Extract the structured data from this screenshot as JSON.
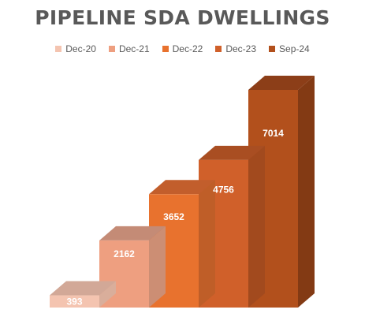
{
  "chart_data": {
    "type": "bar",
    "title": "PIPELINE SDA DWELLINGS",
    "categories": [
      "Dec-20",
      "Dec-21",
      "Dec-22",
      "Dec-23",
      "Sep-24"
    ],
    "values": [
      393,
      2162,
      3652,
      4756,
      7014
    ],
    "xlabel": "",
    "ylabel": "",
    "ylim": [
      0,
      7500
    ],
    "grid": false,
    "legend_position": "top",
    "three_d": true,
    "colors": {
      "front": [
        "#F4C4B0",
        "#EE9F80",
        "#E8722E",
        "#D0602A",
        "#B2501C"
      ],
      "top": [
        "#D2A897",
        "#C48B76",
        "#C25E2C",
        "#A94E22",
        "#8C3E18"
      ],
      "side": [
        "#D9AE9B",
        "#CC8E74",
        "#BF5E28",
        "#A24A1E",
        "#833A14"
      ]
    }
  }
}
